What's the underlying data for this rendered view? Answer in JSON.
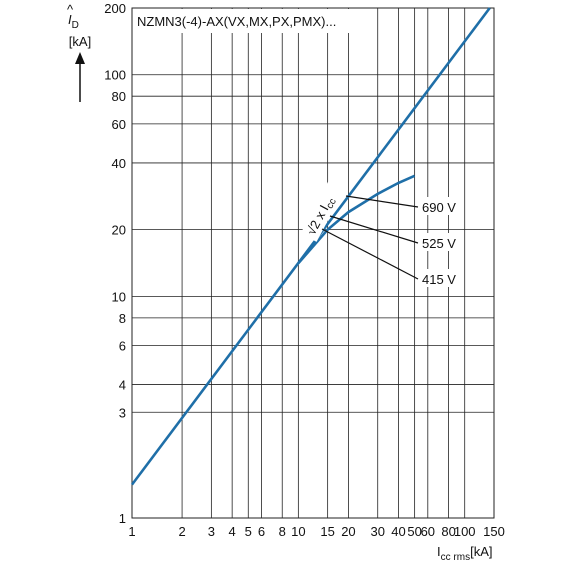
{
  "chart_data": {
    "type": "line",
    "title": "NZMN3(-4)-AX(VX,MX,PX,PMX)...",
    "y_label": "I",
    "y_label_sub": "D",
    "y_unit": "[kA]",
    "x_label": "I",
    "x_label_sub": "cc rms",
    "x_unit": "[kA]",
    "log_x": true,
    "log_y": true,
    "grid": true,
    "xlim": [
      1,
      150
    ],
    "ylim": [
      1,
      200
    ],
    "xticks": [
      1,
      2,
      3,
      4,
      5,
      6,
      8,
      10,
      15,
      20,
      30,
      40,
      50,
      60,
      80,
      100,
      150
    ],
    "yticks": [
      1,
      3,
      4,
      6,
      8,
      10,
      20,
      40,
      60,
      80,
      100,
      200
    ],
    "series": [
      {
        "name": "√2 x I",
        "name_sub": "cc",
        "color": "#1f6fa8",
        "x": [
          1,
          141.4
        ],
        "values": [
          1.414,
          200
        ]
      },
      {
        "name": "690 V",
        "color": "#1f6fa8",
        "x": [
          10,
          15,
          20,
          30,
          40,
          50
        ],
        "values": [
          14.1,
          20,
          24,
          29,
          32.5,
          35
        ]
      }
    ],
    "annotations": [
      "525 V",
      "415 V"
    ]
  }
}
